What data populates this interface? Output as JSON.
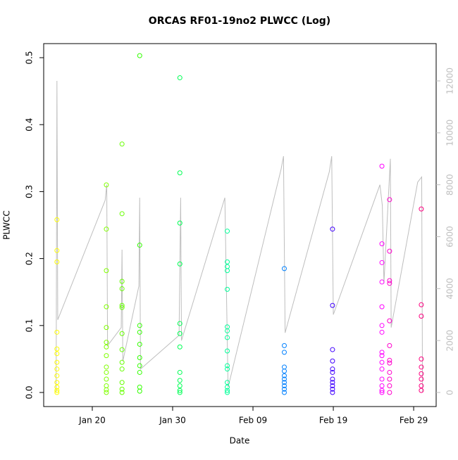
{
  "chart_data": {
    "type": "scatter",
    "title": "ORCAS RF01-19no2 PLWCC (Log)",
    "xlabel": "Date",
    "ylabel": "PLWCC",
    "xlim": [
      13.95,
      62.8
    ],
    "xticks": [
      {
        "value": 20,
        "label": "Jan 20"
      },
      {
        "value": 30,
        "label": "Jan 30"
      },
      {
        "value": 40,
        "label": "Feb 09"
      },
      {
        "value": 50,
        "label": "Feb 19"
      },
      {
        "value": 60,
        "label": "Feb 29"
      }
    ],
    "ylim": [
      -0.021,
      0.521
    ],
    "yticks": [
      {
        "value": 0,
        "label": "0.0"
      },
      0.1,
      0.2,
      0.3,
      0.4,
      0.5
    ],
    "y2lim": [
      -542,
      13436
    ],
    "y2ticks": [
      0,
      2000,
      4000,
      6000,
      8000,
      10000,
      12000
    ],
    "series": [
      {
        "color": "#ffff00",
        "x": [
          15.6,
          15.6,
          15.6,
          15.6,
          15.6,
          15.6,
          15.6,
          15.6,
          15.6,
          15.6,
          15.6,
          15.6,
          15.6
        ],
        "values": [
          0.258,
          0.212,
          0.195,
          0.09,
          0.065,
          0.058,
          0.045,
          0.035,
          0.025,
          0.015,
          0.008,
          0.003,
          0
        ]
      },
      {
        "color": "#80ff00",
        "x": [
          21.75,
          21.75,
          21.75,
          21.75,
          21.75,
          21.75,
          21.75,
          21.75,
          21.75,
          21.75,
          21.75,
          21.75,
          21.75,
          21.75
        ],
        "values": [
          0.31,
          0.244,
          0.182,
          0.128,
          0.097,
          0.075,
          0.068,
          0.055,
          0.038,
          0.03,
          0.02,
          0.01,
          0.004,
          0
        ]
      },
      {
        "color": "#66ff00",
        "x": [
          23.7,
          23.7,
          23.7,
          23.7,
          23.7,
          23.7,
          23.7,
          23.7,
          23.7,
          23.7,
          23.7,
          23.7,
          23.7
        ],
        "values": [
          0.371,
          0.267,
          0.166,
          0.155,
          0.13,
          0.127,
          0.088,
          0.064,
          0.045,
          0.035,
          0.015,
          0.005,
          0
        ]
      },
      {
        "color": "#33ff00",
        "x": [
          25.9,
          25.9,
          25.9,
          25.9,
          25.9,
          25.9,
          25.9,
          25.9,
          25.9,
          25.9
        ],
        "values": [
          0.503,
          0.22,
          0.1,
          0.09,
          0.072,
          0.052,
          0.04,
          0.03,
          0.008,
          0.002
        ]
      },
      {
        "color": "#00ff55",
        "x": [
          30.9,
          30.9,
          30.9,
          30.9,
          30.9,
          30.9,
          30.9,
          30.9,
          30.9,
          30.9,
          30.9,
          30.9
        ],
        "values": [
          0.47,
          0.328,
          0.253,
          0.192,
          0.103,
          0.088,
          0.068,
          0.03,
          0.018,
          0.01,
          0.003,
          0
        ]
      },
      {
        "color": "#00ff99",
        "x": [
          36.8,
          36.8,
          36.8,
          36.8,
          36.8,
          36.8,
          36.8,
          36.8,
          36.8,
          36.8,
          36.8,
          36.8,
          36.8,
          36.8,
          36.8
        ],
        "values": [
          0.241,
          0.195,
          0.188,
          0.182,
          0.154,
          0.098,
          0.092,
          0.082,
          0.062,
          0.04,
          0.035,
          0.015,
          0.008,
          0.003,
          0
        ]
      },
      {
        "color": "#0080ff",
        "x": [
          43.9,
          43.9,
          43.9,
          43.9,
          43.9,
          43.9,
          43.9,
          43.9,
          43.9,
          43.9,
          43.9
        ],
        "values": [
          0.185,
          0.07,
          0.06,
          0.038,
          0.032,
          0.025,
          0.02,
          0.015,
          0.01,
          0.005,
          0
        ]
      },
      {
        "color": "#4000ff",
        "x": [
          49.9,
          49.9,
          49.9,
          49.9,
          49.9,
          49.9,
          49.9,
          49.9,
          49.9,
          49.9,
          49.9
        ],
        "values": [
          0.244,
          0.13,
          0.064,
          0.047,
          0.035,
          0.03,
          0.02,
          0.015,
          0.01,
          0.005,
          0
        ]
      },
      {
        "color": "#ff00ff",
        "x": [
          56.05,
          56.05,
          56.05,
          56.05,
          56.05,
          56.05,
          56.05,
          56.05,
          56.05,
          56.05,
          56.05,
          56.05,
          56.05,
          56.05,
          56.05
        ],
        "values": [
          0.338,
          0.222,
          0.194,
          0.165,
          0.128,
          0.1,
          0.09,
          0.06,
          0.055,
          0.045,
          0.035,
          0.02,
          0.01,
          0.003,
          0
        ]
      },
      {
        "color": "#ff00cc",
        "x": [
          57,
          57,
          57,
          57,
          57,
          57,
          57,
          57,
          57,
          57,
          57,
          57
        ],
        "values": [
          0.288,
          0.211,
          0.167,
          0.163,
          0.107,
          0.07,
          0.048,
          0.044,
          0.03,
          0.02,
          0.01,
          0
        ]
      },
      {
        "color": "#ff0080",
        "x": [
          60.95,
          60.95,
          60.95,
          60.95,
          60.95,
          60.95,
          60.95,
          60.95,
          60.95
        ],
        "values": [
          0.274,
          0.131,
          0.114,
          0.05,
          0.038,
          0.028,
          0.02,
          0.01,
          0.003
        ]
      },
      {
        "type": "line",
        "axis": "y2",
        "color": "#bebebe",
        "x": [
          15.5,
          15.6,
          15.7,
          21.6,
          21.8,
          21.9,
          23.6,
          23.7,
          23.8,
          25.8,
          25.9,
          26,
          30.8,
          31,
          31.1,
          36.5,
          36.9,
          43.5,
          43.8,
          44,
          49.5,
          49.8,
          50,
          55.8,
          56.1,
          56.3,
          57.1,
          57.2,
          60.5,
          61,
          61.1
        ],
        "values": [
          0,
          12000,
          2800,
          7400,
          8000,
          1800,
          2500,
          5500,
          1200,
          4100,
          7500,
          900,
          2200,
          7500,
          2000,
          7500,
          200,
          8600,
          9100,
          2300,
          8500,
          9100,
          3000,
          8000,
          7200,
          4200,
          9000,
          2500,
          8100,
          8300,
          0
        ]
      }
    ]
  }
}
